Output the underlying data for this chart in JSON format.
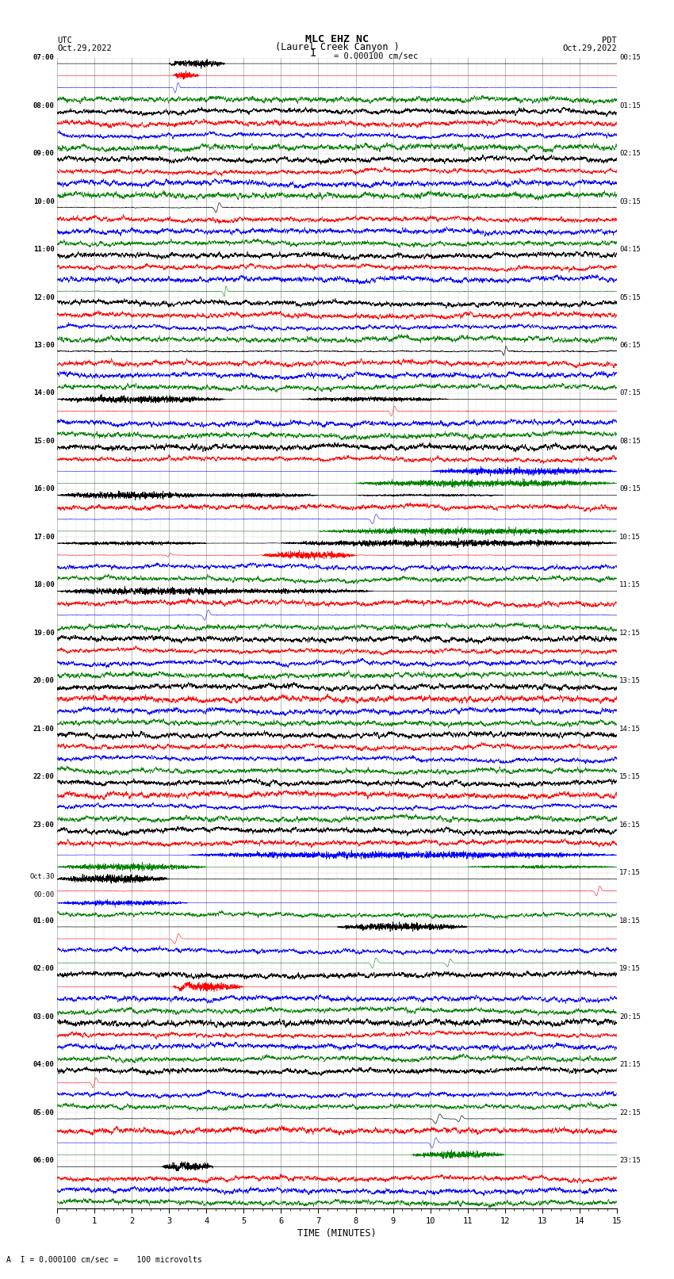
{
  "title_line1": "MLC EHZ NC",
  "title_line2": "(Laurel Creek Canyon )",
  "scale_text": "I = 0.000100 cm/sec",
  "footer_text": "A  I = 0.000100 cm/sec =    100 microvolts",
  "utc_label": "UTC",
  "utc_date": "Oct.29,2022",
  "pdt_label": "PDT",
  "pdt_date": "Oct.29,2022",
  "xlabel": "TIME (MINUTES)",
  "bg_color": "#ffffff",
  "trace_colors": [
    "black",
    "red",
    "blue",
    "green"
  ],
  "grid_color": "#aaaaaa",
  "n_hours": 24,
  "utc_labels": [
    "07:00",
    "08:00",
    "09:00",
    "10:00",
    "11:00",
    "12:00",
    "13:00",
    "14:00",
    "15:00",
    "16:00",
    "17:00",
    "18:00",
    "19:00",
    "20:00",
    "21:00",
    "22:00",
    "23:00",
    "Oct.30\n00:00",
    "01:00",
    "02:00",
    "03:00",
    "04:00",
    "05:00",
    "06:00"
  ],
  "pdt_labels": [
    "00:15",
    "01:15",
    "02:15",
    "03:15",
    "04:15",
    "05:15",
    "06:15",
    "07:15",
    "08:15",
    "09:15",
    "10:15",
    "11:15",
    "12:15",
    "13:15",
    "14:15",
    "15:15",
    "16:15",
    "17:15",
    "18:15",
    "19:15",
    "20:15",
    "21:15",
    "22:15",
    "23:15"
  ],
  "xlim": [
    0,
    15
  ],
  "xticks": [
    0,
    1,
    2,
    3,
    4,
    5,
    6,
    7,
    8,
    9,
    10,
    11,
    12,
    13,
    14,
    15
  ],
  "noise_amplitude": 0.35,
  "seed": 12345
}
